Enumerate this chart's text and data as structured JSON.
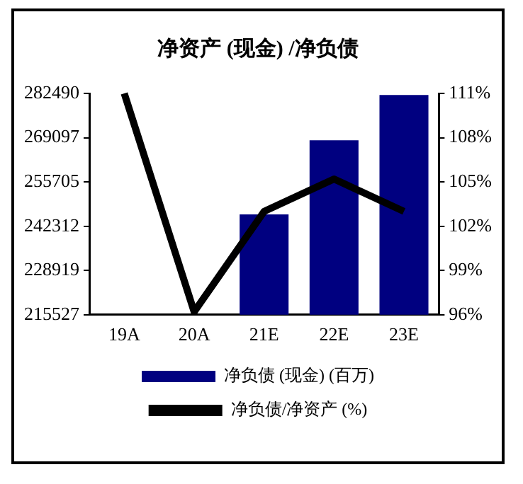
{
  "chart_data": {
    "type": "bar",
    "title": "净资产 (现金) /净负债",
    "categories": [
      "19A",
      "20A",
      "21E",
      "22E",
      "23E"
    ],
    "series": [
      {
        "name": "净负债 (现金) (百万)",
        "color": "#000080",
        "values": [
          null,
          null,
          245900,
          268300,
          282000
        ]
      },
      {
        "name": "净负债/净资产 (%)",
        "type": "line",
        "axis": "y2",
        "color": "#000000",
        "values": [
          111,
          96.2,
          103.0,
          105.2,
          103.0
        ]
      }
    ],
    "ylim": [
      215527,
      282490
    ],
    "yticks": [
      215527,
      228919,
      242312,
      255705,
      269097,
      282490
    ],
    "y2lim": [
      96,
      111
    ],
    "y2ticks": [
      {
        "value": 96,
        "label": "96%"
      },
      {
        "value": 99,
        "label": "99%"
      },
      {
        "value": 102,
        "label": "102%"
      },
      {
        "value": 105,
        "label": "105%"
      },
      {
        "value": 108,
        "label": "108%"
      },
      {
        "value": 111,
        "label": "111%"
      }
    ],
    "grid": false,
    "legend": "bottom",
    "marker": "none",
    "line_style": "solid"
  }
}
